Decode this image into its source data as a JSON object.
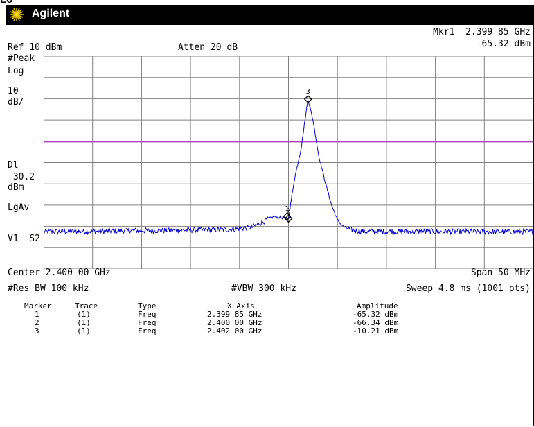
{
  "top_fragment": "Lo",
  "window": {
    "brand": "Agilent"
  },
  "header": {
    "marker_readout": "Mkr1  2.399 85 GHz",
    "marker_amplitude": "-65.32 dBm",
    "ref_level": "Ref 10 dBm",
    "attenuation": "Atten 20 dB"
  },
  "left_annotations": {
    "detector": "#Peak",
    "scale_type": "Log",
    "scale_value": "10",
    "scale_unit": "dB/",
    "dl_label": "Dl",
    "dl_value": "-30.2",
    "dl_unit": "dBm",
    "avg_mode": "LgAv",
    "trig_label": "V1  S2"
  },
  "footer": {
    "center": "Center 2.400 00 GHz",
    "span": "Span 50 MHz",
    "rbw": "#Res BW 100 kHz",
    "vbw": "#VBW 300 kHz",
    "sweep": "Sweep 4.8 ms (1001 pts)"
  },
  "colors": {
    "trace": "#0000cc",
    "display_line": "#b040c0",
    "grid": "#808080",
    "background": "#ffffff"
  },
  "chart_data": {
    "type": "line",
    "x_center_ghz": 2.4,
    "span_mhz": 50,
    "ref_level_dbm": 10,
    "scale_db_per_div": 10,
    "ylim": [
      -90,
      10
    ],
    "xlim_ghz": [
      2.375,
      2.425
    ],
    "grid": true,
    "display_line_dbm": -30.2,
    "noise_floor_dbm": -72.5,
    "series": [
      {
        "x_ghz": [
          2.375,
          2.3938,
          2.3962,
          2.3985,
          2.4,
          2.4006,
          2.4013,
          2.4019,
          2.402,
          2.4025,
          2.4031,
          2.4038,
          2.4044,
          2.405,
          2.4056,
          2.4063,
          2.4075,
          2.425
        ],
        "y_dbm": [
          -72.5,
          -71.5,
          -70.5,
          -65.32,
          -66.34,
          -48,
          -33,
          -13,
          -10.21,
          -20,
          -37,
          -50,
          -60,
          -67,
          -70,
          -71.5,
          -72.3,
          -72.5
        ]
      }
    ],
    "markers": [
      {
        "label": "1",
        "x_ghz": 2.39985,
        "y_dbm": -65.32
      },
      {
        "label": "2",
        "x_ghz": 2.4,
        "y_dbm": -66.34
      },
      {
        "label": "3",
        "x_ghz": 2.402,
        "y_dbm": -10.21
      }
    ]
  },
  "marker_table": {
    "headers": [
      "Marker",
      "Trace",
      "Type",
      "X Axis",
      "Amplitude"
    ],
    "rows": [
      [
        "1",
        "(1)",
        "Freq",
        "2.399 85 GHz",
        "-65.32 dBm"
      ],
      [
        "2",
        "(1)",
        "Freq",
        "2.400 00 GHz",
        "-66.34 dBm"
      ],
      [
        "3",
        "(1)",
        "Freq",
        "2.402 00 GHz",
        "-10.21 dBm"
      ]
    ]
  }
}
